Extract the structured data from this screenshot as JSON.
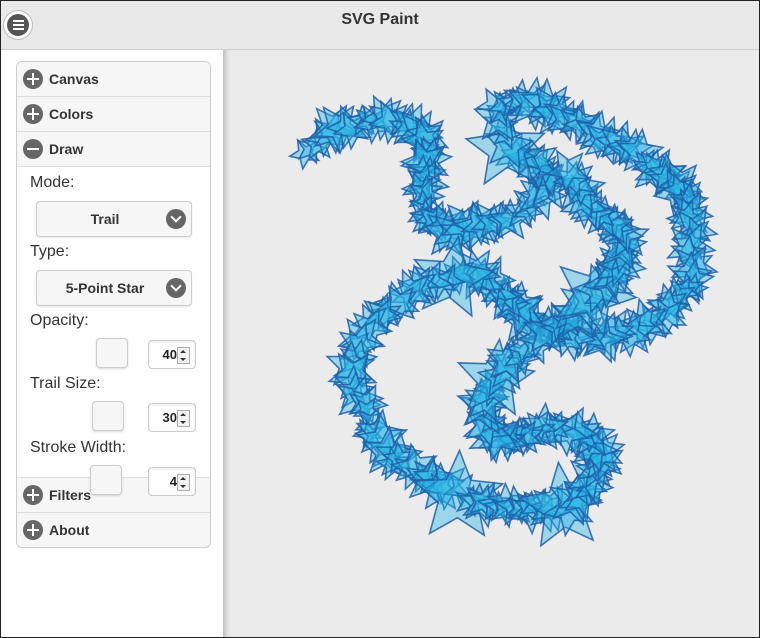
{
  "header": {
    "title": "SVG Paint",
    "menu_icon": "hamburger-menu-icon"
  },
  "sidebar": {
    "sections": [
      {
        "label": "Canvas",
        "state": "collapsed",
        "icon": "plus-icon"
      },
      {
        "label": "Colors",
        "state": "collapsed",
        "icon": "plus-icon"
      },
      {
        "label": "Draw",
        "state": "expanded",
        "icon": "minus-icon"
      },
      {
        "label": "Filters",
        "state": "collapsed",
        "icon": "plus-icon"
      },
      {
        "label": "About",
        "state": "collapsed",
        "icon": "plus-icon"
      }
    ],
    "draw": {
      "mode_label": "Mode:",
      "mode_value": "Trail",
      "type_label": "Type:",
      "type_value": "5-Point Star",
      "opacity_label": "Opacity:",
      "opacity_value": "40",
      "trail_size_label": "Trail Size:",
      "trail_size_value": "30",
      "stroke_width_label": "Stroke Width:",
      "stroke_width_value": "4"
    }
  },
  "canvas": {
    "shape": "5-point-star",
    "fill_color": "#29b6e6",
    "stroke_color": "#1f5fa8"
  }
}
